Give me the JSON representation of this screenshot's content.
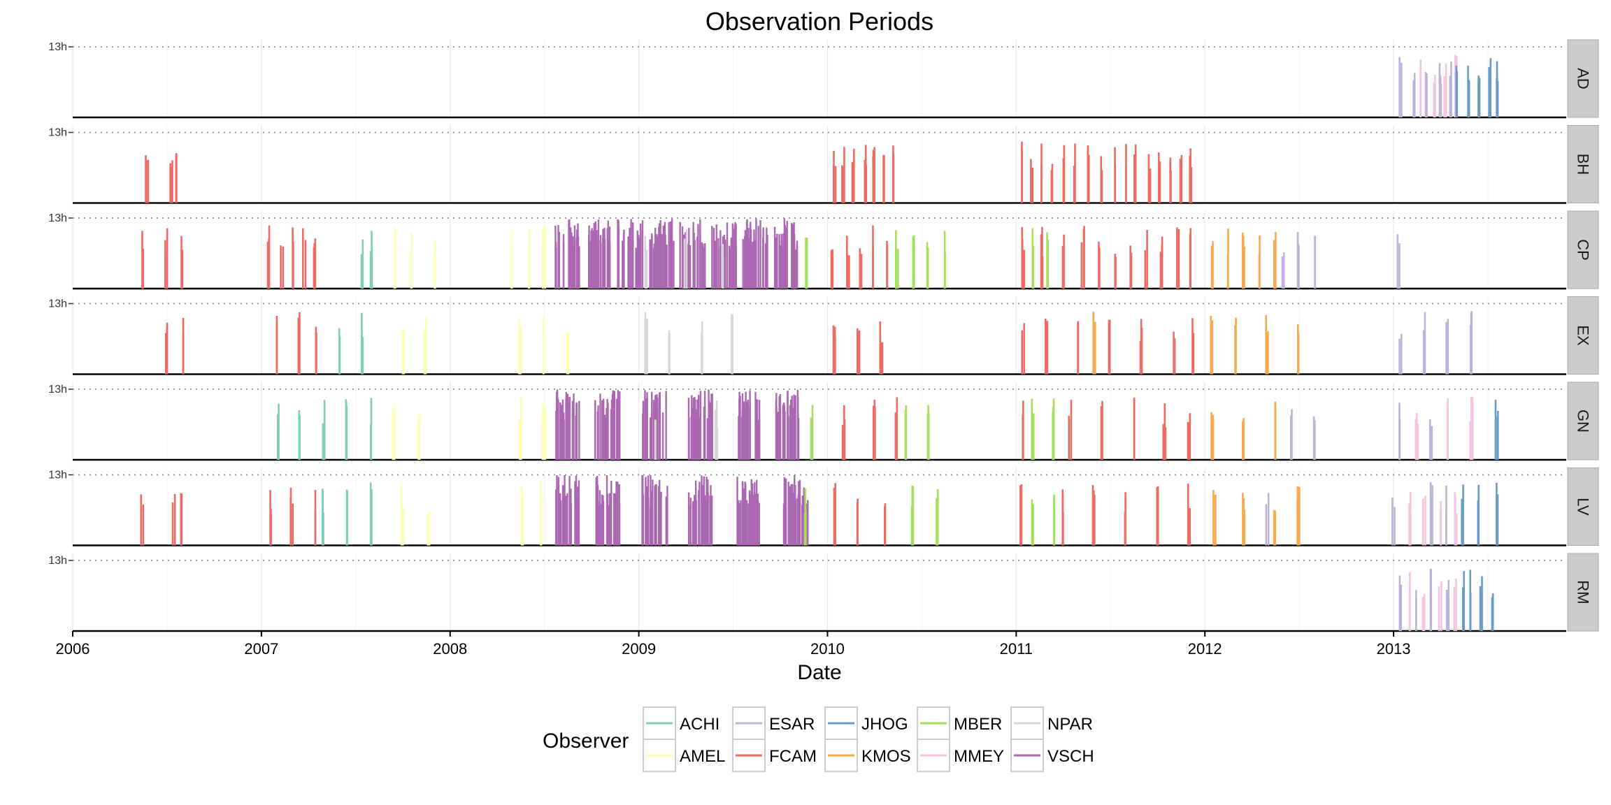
{
  "chart_data": {
    "type": "bar",
    "title": "Observation Periods",
    "xlabel": "Date",
    "ylabel": "",
    "x_axis": {
      "ticks": [
        "2006",
        "2007",
        "2008",
        "2009",
        "2010",
        "2011",
        "2012",
        "2013"
      ],
      "range": [
        "2006-01-01",
        "2013-12-01"
      ]
    },
    "y_axis": {
      "tick_label": "13h",
      "tick_value": 13,
      "range": [
        0,
        13
      ]
    },
    "grid": true,
    "facets": [
      "AD",
      "BH",
      "CP",
      "EX",
      "GN",
      "LV",
      "RM"
    ],
    "legend": {
      "title": "Observer",
      "placement": "bottom",
      "entries": [
        {
          "name": "ACHI",
          "color": "#7fcdbb"
        },
        {
          "name": "AMEL",
          "color": "#ffffb3"
        },
        {
          "name": "ESAR",
          "color": "#bcb3d9"
        },
        {
          "name": "FCAM",
          "color": "#ee6a62"
        },
        {
          "name": "JHOG",
          "color": "#6a9bc8"
        },
        {
          "name": "KMOS",
          "color": "#f8a84d"
        },
        {
          "name": "MBER",
          "color": "#a3df5b"
        },
        {
          "name": "MMEY",
          "color": "#f6c3df"
        },
        {
          "name": "NPAR",
          "color": "#d6d6d6"
        },
        {
          "name": "VSCH",
          "color": "#ab67b2"
        }
      ]
    },
    "observations": [
      {
        "facet": "AD",
        "observer": "ESAR",
        "dates": [
          "2013-01-15",
          "2013-02-10",
          "2013-03-05",
          "2013-04-01",
          "2013-04-20"
        ]
      },
      {
        "facet": "AD",
        "observer": "MMEY",
        "dates": [
          "2013-02-20",
          "2013-03-20",
          "2013-04-10",
          "2013-05-01"
        ]
      },
      {
        "facet": "AD",
        "observer": "JHOG",
        "dates": [
          "2013-05-05",
          "2013-05-25",
          "2013-06-15",
          "2013-07-05",
          "2013-07-20"
        ]
      },
      {
        "facet": "BH",
        "observer": "FCAM",
        "dates": [
          "2006-05-25",
          "2006-07-10",
          "2006-07-20",
          "2010-01-15",
          "2010-02-01",
          "2010-02-20",
          "2010-03-15",
          "2010-04-01",
          "2010-04-20",
          "2010-05-10",
          "2011-01-10",
          "2011-02-01",
          "2011-02-20",
          "2011-03-10",
          "2011-04-01",
          "2011-04-25",
          "2011-05-20",
          "2011-06-15",
          "2011-07-10",
          "2011-08-01",
          "2011-08-20",
          "2011-09-15",
          "2011-10-05",
          "2011-10-25",
          "2011-11-15",
          "2011-12-05"
        ]
      },
      {
        "facet": "CP",
        "observer": "FCAM",
        "dates": [
          "2006-05-15",
          "2006-07-01",
          "2006-08-01",
          "2007-01-15",
          "2007-02-10",
          "2007-03-05",
          "2007-03-25",
          "2007-04-15",
          "2010-01-10",
          "2010-02-10",
          "2010-03-05",
          "2010-04-01",
          "2010-04-25",
          "2011-01-15",
          "2011-02-20",
          "2011-04-01",
          "2011-05-10",
          "2011-06-10",
          "2011-07-10",
          "2011-08-10",
          "2011-09-10",
          "2011-10-10",
          "2011-11-10",
          "2011-12-05"
        ]
      },
      {
        "facet": "CP",
        "observer": "ACHI",
        "dates": [
          "2007-07-15",
          "2007-08-01"
        ]
      },
      {
        "facet": "CP",
        "observer": "AMEL",
        "dates": [
          "2007-09-15",
          "2007-10-20",
          "2007-12-01",
          "2008-05-01",
          "2008-06-01",
          "2008-07-01"
        ]
      },
      {
        "facet": "CP",
        "observer": "VSCH",
        "dates": [
          "2008-08-15",
          "2008-10-15",
          "2008-12-15",
          "2009-02-15",
          "2009-04-15",
          "2009-06-15",
          "2009-08-15",
          "2009-10-15"
        ]
      },
      {
        "facet": "CP",
        "observer": "NPAR",
        "dates": [
          "2009-01-15",
          "2009-04-01",
          "2009-06-15"
        ]
      },
      {
        "facet": "CP",
        "observer": "MBER",
        "dates": [
          "2009-11-20",
          "2010-05-15",
          "2010-06-15",
          "2010-07-15",
          "2010-08-15",
          "2011-02-01",
          "2011-03-01"
        ]
      },
      {
        "facet": "CP",
        "observer": "KMOS",
        "dates": [
          "2012-01-15",
          "2012-02-15",
          "2012-03-15",
          "2012-04-15",
          "2012-05-15"
        ]
      },
      {
        "facet": "CP",
        "observer": "ESAR",
        "dates": [
          "2012-06-01",
          "2012-07-01",
          "2012-08-01",
          "2013-01-10"
        ]
      },
      {
        "facet": "EX",
        "observer": "FCAM",
        "dates": [
          "2006-07-01",
          "2006-08-01",
          "2007-02-01",
          "2007-03-15",
          "2007-04-15",
          "2010-01-15",
          "2010-03-01",
          "2010-04-15",
          "2011-01-15",
          "2011-03-01",
          "2011-05-01",
          "2011-07-01",
          "2011-09-01",
          "2011-11-01",
          "2011-12-10"
        ]
      },
      {
        "facet": "EX",
        "observer": "ACHI",
        "dates": [
          "2007-06-01",
          "2007-07-15"
        ]
      },
      {
        "facet": "EX",
        "observer": "AMEL",
        "dates": [
          "2007-10-01",
          "2007-11-15",
          "2008-05-15",
          "2008-07-01",
          "2008-08-15"
        ]
      },
      {
        "facet": "EX",
        "observer": "NPAR",
        "dates": [
          "2009-01-15",
          "2009-03-01",
          "2009-05-01",
          "2009-07-01"
        ]
      },
      {
        "facet": "EX",
        "observer": "KMOS",
        "dates": [
          "2011-06-01",
          "2012-01-15",
          "2012-03-01",
          "2012-05-01",
          "2012-07-01"
        ]
      },
      {
        "facet": "EX",
        "observer": "ESAR",
        "dates": [
          "2013-01-15",
          "2013-03-01",
          "2013-04-15",
          "2013-06-01"
        ]
      },
      {
        "facet": "GN",
        "observer": "ACHI",
        "dates": [
          "2007-02-01",
          "2007-03-15",
          "2007-05-01",
          "2007-06-15",
          "2007-08-01"
        ]
      },
      {
        "facet": "GN",
        "observer": "AMEL",
        "dates": [
          "2007-09-15",
          "2007-11-01",
          "2008-05-15",
          "2008-07-01"
        ]
      },
      {
        "facet": "GN",
        "observer": "VSCH",
        "dates": [
          "2008-08-15",
          "2008-11-01",
          "2009-02-01",
          "2009-05-01",
          "2009-08-01",
          "2009-10-15"
        ]
      },
      {
        "facet": "GN",
        "observer": "NPAR",
        "dates": [
          "2009-02-01",
          "2009-06-01"
        ]
      },
      {
        "facet": "GN",
        "observer": "MBER",
        "dates": [
          "2009-12-01",
          "2010-06-01",
          "2010-07-15",
          "2011-02-01",
          "2011-03-15"
        ]
      },
      {
        "facet": "GN",
        "observer": "FCAM",
        "dates": [
          "2010-02-01",
          "2010-04-01",
          "2010-05-15",
          "2011-01-15",
          "2011-04-15",
          "2011-06-15",
          "2011-08-15",
          "2011-10-15",
          "2011-12-01"
        ]
      },
      {
        "facet": "GN",
        "observer": "KMOS",
        "dates": [
          "2012-01-15",
          "2012-03-15",
          "2012-05-15"
        ]
      },
      {
        "facet": "GN",
        "observer": "ESAR",
        "dates": [
          "2012-06-15",
          "2012-08-01",
          "2013-01-15",
          "2013-03-15"
        ]
      },
      {
        "facet": "GN",
        "observer": "MMEY",
        "dates": [
          "2013-02-15",
          "2013-04-15",
          "2013-06-01"
        ]
      },
      {
        "facet": "GN",
        "observer": "JHOG",
        "dates": [
          "2013-07-20"
        ]
      },
      {
        "facet": "LV",
        "observer": "FCAM",
        "dates": [
          "2006-05-15",
          "2006-07-15",
          "2006-08-01",
          "2007-01-20",
          "2007-03-01",
          "2007-04-15",
          "2010-01-15",
          "2010-03-01",
          "2010-04-20",
          "2011-01-10",
          "2011-04-01",
          "2011-06-01",
          "2011-08-01",
          "2011-10-01",
          "2011-12-01"
        ]
      },
      {
        "facet": "LV",
        "observer": "ACHI",
        "dates": [
          "2007-05-01",
          "2007-06-15",
          "2007-08-01"
        ]
      },
      {
        "facet": "LV",
        "observer": "AMEL",
        "dates": [
          "2007-10-01",
          "2007-11-20",
          "2008-05-20",
          "2008-06-25"
        ]
      },
      {
        "facet": "LV",
        "observer": "VSCH",
        "dates": [
          "2008-08-15",
          "2008-11-01",
          "2009-02-01",
          "2009-05-01",
          "2009-08-01",
          "2009-11-01"
        ]
      },
      {
        "facet": "LV",
        "observer": "MBER",
        "dates": [
          "2009-11-20",
          "2010-06-15",
          "2010-08-01",
          "2011-02-01",
          "2011-03-15"
        ]
      },
      {
        "facet": "LV",
        "observer": "KMOS",
        "dates": [
          "2012-01-20",
          "2012-03-15",
          "2012-05-15",
          "2012-07-01"
        ]
      },
      {
        "facet": "LV",
        "observer": "ESAR",
        "dates": [
          "2012-05-01",
          "2013-01-01",
          "2013-03-15",
          "2013-04-15"
        ]
      },
      {
        "facet": "LV",
        "observer": "MMEY",
        "dates": [
          "2013-02-01",
          "2013-03-01",
          "2013-04-01",
          "2013-05-01"
        ]
      },
      {
        "facet": "LV",
        "observer": "JHOG",
        "dates": [
          "2013-05-15",
          "2013-06-15",
          "2013-07-20"
        ]
      },
      {
        "facet": "RM",
        "observer": "ESAR",
        "dates": [
          "2013-01-15",
          "2013-02-15",
          "2013-03-15",
          "2013-04-15"
        ]
      },
      {
        "facet": "RM",
        "observer": "MMEY",
        "dates": [
          "2013-02-01",
          "2013-03-01",
          "2013-04-01",
          "2013-05-01"
        ]
      },
      {
        "facet": "RM",
        "observer": "JHOG",
        "dates": [
          "2013-05-15",
          "2013-06-01",
          "2013-06-20",
          "2013-07-10"
        ]
      }
    ]
  }
}
